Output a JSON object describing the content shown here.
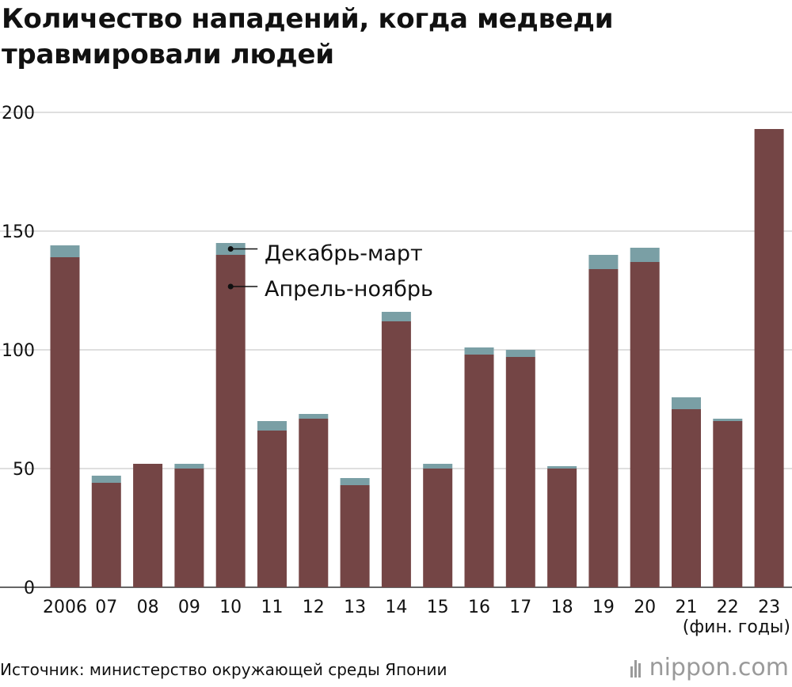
{
  "title": "Количество нападений, когда медведи травмировали людей",
  "unit_note": "(фин. годы)",
  "source": "Источник: министерство окружающей среды Японии",
  "brand": "nippon.com",
  "colors": {
    "april_november": "#744545",
    "december_march": "#7a9fa5",
    "grid": "#cccccc",
    "text": "#111111"
  },
  "chart_data": {
    "type": "bar",
    "stacked": true,
    "categories": [
      "2006",
      "07",
      "08",
      "09",
      "10",
      "11",
      "12",
      "13",
      "14",
      "15",
      "16",
      "17",
      "18",
      "19",
      "20",
      "21",
      "22",
      "23"
    ],
    "series": [
      {
        "name": "Апрель-ноябрь",
        "values": [
          139,
          44,
          52,
          50,
          140,
          66,
          71,
          43,
          112,
          50,
          98,
          97,
          50,
          134,
          137,
          75,
          70,
          193
        ]
      },
      {
        "name": "Декабрь-март",
        "values": [
          5,
          3,
          0,
          2,
          5,
          4,
          2,
          3,
          4,
          2,
          3,
          3,
          1,
          6,
          6,
          5,
          1,
          0
        ]
      }
    ],
    "ylim": [
      0,
      200
    ],
    "yticks": [
      0,
      50,
      100,
      150,
      200
    ],
    "grid": true,
    "legend_placement": "inside, near the 10 bar"
  }
}
